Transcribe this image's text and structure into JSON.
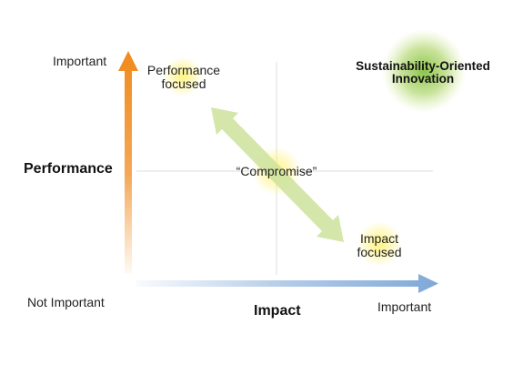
{
  "colors": {
    "vertical_arrow": "#f08a1c",
    "horizontal_arrow": "#7fa8d8",
    "diagonal_arrow": "#cfe3a0",
    "highlight_glow": "#fff27a",
    "green_glow": "#74b92a",
    "gridline": "#e4e4e4"
  },
  "y_axis": {
    "title": "Performance",
    "top_label": "Important",
    "bottom_label": "Not Important"
  },
  "x_axis": {
    "title": "Impact",
    "right_label": "Important"
  },
  "nodes": {
    "performance_focused": [
      "Performance",
      "focused"
    ],
    "compromise": "“Compromise”",
    "impact_focused": [
      "Impact",
      "focused"
    ],
    "sustainability": [
      "Sustainability-Oriented",
      "Innovation"
    ]
  }
}
